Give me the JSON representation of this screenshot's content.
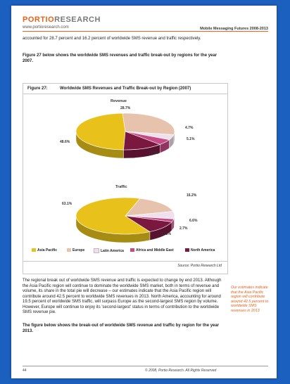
{
  "header": {
    "logo_part1": "PORTIO",
    "logo_part2": "RESEARCH",
    "website": "www.portioresearch.com",
    "report_title": "Mobile Messaging Futures 2008-2013"
  },
  "intro": {
    "line1": "accounted for 28.7 percent and 16.2 percent of worldwide SMS revenue and traffic respectively.",
    "line2": "Figure 27 below shows the worldwide SMS revenues and traffic break-out by regions for the year 2007."
  },
  "figure": {
    "number": "Figure 27:",
    "title": "Worldwide SMS Revenues and Traffic Break-out by Region (2007)",
    "source": "Source: Portio Research Ltd"
  },
  "colors": {
    "asia_pacific": "#e8c21a",
    "europe": "#e7c3ad",
    "latin_america": "#efe0ee",
    "africa_middle_east": "#c64a86",
    "north_america": "#7a1840"
  },
  "chart_data": [
    {
      "type": "pie",
      "title": "Revenue",
      "categories": [
        "Asia Pacific",
        "Europe",
        "Latin America",
        "Africa and Middle East",
        "North America"
      ],
      "values": [
        48.6,
        28.7,
        4.7,
        5.1,
        13.0
      ],
      "labels": [
        "48.6%",
        "28.7%",
        "4.7%",
        "5.1%",
        "13.0%"
      ],
      "legend": "bottom"
    },
    {
      "type": "pie",
      "title": "Traffic",
      "categories": [
        "Asia Pacific",
        "Europe",
        "Latin America",
        "Africa and Middle East",
        "North America"
      ],
      "values": [
        63.1,
        16.2,
        6.6,
        2.7,
        11.3
      ],
      "labels": [
        "63.1%",
        "16.2%",
        "6.6%",
        "2.7%",
        "11.3%"
      ],
      "legend": "bottom"
    }
  ],
  "body": {
    "para1": "The regional break out of worldwide SMS revenue and traffic is expected to change by end 2013. Although the Asia Pacific region will continue to dominate the worldwide SMS market, both in terms of revenue and volume, its share in the total pie will decrease – our estimates indicate that the Asia Pacific region will contribute around 42.5 percent to worldwide SMS revenues in 2013. North America, accounting for around 19.5 percent of worldwide SMS traffic, will surpass Europe as the second-largest SMS region by volume. However, Europe will continue to enjoy its 'second-largest' status in terms of contribution to the worldwide SMS revenue pie.",
    "para2": "The figure below shows the break-out of worldwide SMS revenue and traffic by region for the year 2013.",
    "side_note": "Our estimates indicate that the Asia Pacific region will contribute around 42.5 percent to worldwide SMS revenues in 2013"
  },
  "footer": {
    "page_number": "44",
    "copyright": "© 2008, Portio Research. All Rights Reserved"
  }
}
